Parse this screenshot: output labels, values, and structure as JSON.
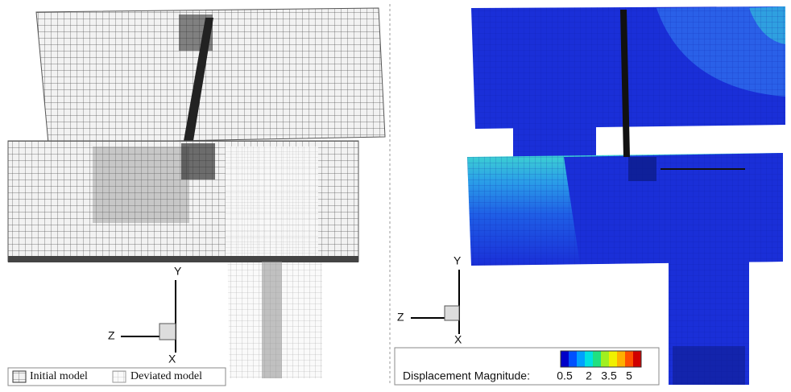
{
  "left_panel": {
    "axes": {
      "y": "Y",
      "z": "Z",
      "x": "X"
    },
    "legend": {
      "items": [
        "Initial model",
        "Deviated model"
      ]
    }
  },
  "right_panel": {
    "axes": {
      "y": "Y",
      "z": "Z",
      "x": "X"
    },
    "colorbar": {
      "title": "Displacement Magnitude:",
      "ticks": [
        "0.5",
        "2",
        "3.5",
        "5"
      ]
    }
  }
}
